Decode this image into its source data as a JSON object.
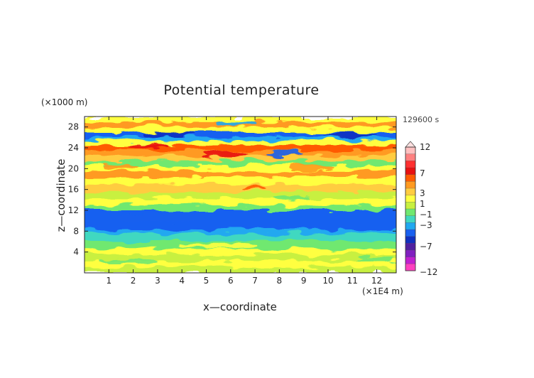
{
  "chart_data": {
    "type": "heatmap",
    "title": "Potential temperature",
    "xlabel": "x—coordinate",
    "ylabel": "z—coordinate",
    "x_unit": "(×1E4 m)",
    "y_unit": "(×1000 m)",
    "time_label": "129600 s",
    "xlim": [
      0,
      12.8
    ],
    "ylim": [
      0,
      30
    ],
    "x_ticks": [
      "1",
      "2",
      "3",
      "4",
      "5",
      "6",
      "7",
      "8",
      "9",
      "10",
      "11",
      "12"
    ],
    "y_ticks": [
      "4",
      "8",
      "12",
      "16",
      "20",
      "24",
      "28"
    ],
    "colorbar": {
      "labels": [
        "12",
        "7",
        "3",
        "1",
        "−1",
        "−3",
        "−7",
        "−12"
      ],
      "levels": [
        12,
        7,
        3,
        1,
        -1,
        -3,
        -7,
        -12
      ],
      "colors": [
        "#ffc0c0",
        "#ff8080",
        "#ff3030",
        "#e81010",
        "#ff5a00",
        "#ff9a20",
        "#ffcc40",
        "#ffff40",
        "#c8f040",
        "#70e870",
        "#40d8c0",
        "#20a8f0",
        "#1860f0",
        "#1030c0",
        "#5020a0",
        "#8020c0",
        "#c020d0",
        "#ff40c0"
      ]
    },
    "bands": [
      {
        "z_min": 0,
        "z_max": 4,
        "value": -0.5
      },
      {
        "z_min": 4,
        "z_max": 8,
        "value": -1.2
      },
      {
        "z_min": 8,
        "z_max": 12,
        "value": -3.5
      },
      {
        "z_min": 12,
        "z_max": 16,
        "value": 0.5
      },
      {
        "z_min": 16,
        "z_max": 20,
        "value": 2
      },
      {
        "z_min": 20,
        "z_max": 24,
        "value": 3
      },
      {
        "z_min": 24,
        "z_max": 28,
        "value": 1
      },
      {
        "z_min": 28,
        "z_max": 30,
        "value": 2
      }
    ]
  }
}
